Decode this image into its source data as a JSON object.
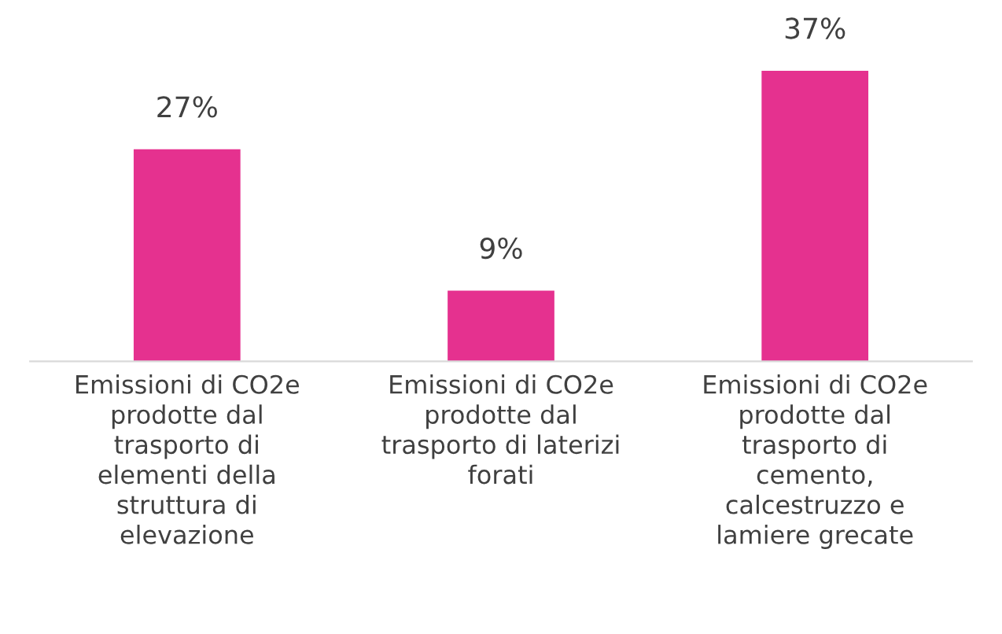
{
  "chart_data": {
    "type": "bar",
    "categories": [
      "Emissioni di CO2e\nprodotte dal\ntrasporto di\nelementi della\nstruttura di\nelevazione",
      "Emissioni di CO2e\nprodotte dal\ntrasporto di laterizi\nforati",
      "Emissioni di CO2e\nprodotte dal\ntrasporto di\ncemento,\ncalcestruzzo e\nlamiere grecate"
    ],
    "values": [
      27,
      9,
      37
    ],
    "color": "#e5318f",
    "data_labels": true,
    "value_labels": [
      "27%",
      "9%",
      "37%"
    ],
    "grid": false,
    "legend": false
  }
}
